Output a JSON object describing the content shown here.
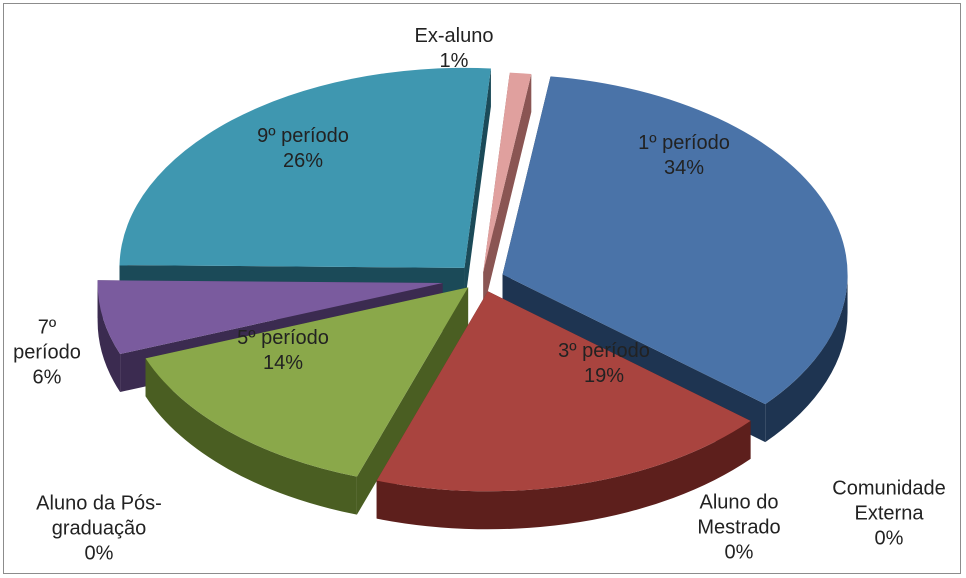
{
  "chart_data": {
    "type": "pie",
    "style": "3d-exploded",
    "total_percent": 100,
    "slices": [
      {
        "name": "1º período",
        "label_lines": [
          "1º período"
        ],
        "value": 34,
        "percent": "34%",
        "color": "#4a73a8",
        "side": "#1e3451",
        "label_inside": true
      },
      {
        "name": "Comunidade Externa",
        "label_lines": [
          "Comunidade",
          "Externa"
        ],
        "value": 0,
        "percent": "0%",
        "color": "#b8c9de",
        "side": "#5c6a7a",
        "label_inside": false
      },
      {
        "name": "Aluno do Mestrado",
        "label_lines": [
          "Aluno do",
          "Mestrado"
        ],
        "value": 0,
        "percent": "0%",
        "color": "#d9d9d9",
        "side": "#7a7a7a",
        "label_inside": false
      },
      {
        "name": "3º período",
        "label_lines": [
          "3º período"
        ],
        "value": 19,
        "percent": "19%",
        "color": "#a9443f",
        "side": "#5d1f1c",
        "label_inside": true
      },
      {
        "name": "Aluno da Pós-graduação",
        "label_lines": [
          "Aluno da Pós-",
          "graduação"
        ],
        "value": 0,
        "percent": "0%",
        "color": "#c9b8de",
        "side": "#6b5f7a",
        "label_inside": false
      },
      {
        "name": "5º período",
        "label_lines": [
          "5º período"
        ],
        "value": 14,
        "percent": "14%",
        "color": "#8aa84a",
        "side": "#4a5e22",
        "label_inside": true
      },
      {
        "name": "7º período",
        "label_lines": [
          "7º",
          "período"
        ],
        "value": 6,
        "percent": "6%",
        "color": "#7a5b9e",
        "side": "#3b2b50",
        "label_inside": false
      },
      {
        "name": "9º período",
        "label_lines": [
          "9º período"
        ],
        "value": 26,
        "percent": "26%",
        "color": "#3f97b0",
        "side": "#1b4a58",
        "label_inside": true
      },
      {
        "name": "Ex-aluno",
        "label_lines": [
          "Ex-aluno"
        ],
        "value": 1,
        "percent": "1%",
        "color": "#e0a09e",
        "side": "#8a5553",
        "label_inside": false
      }
    ]
  }
}
